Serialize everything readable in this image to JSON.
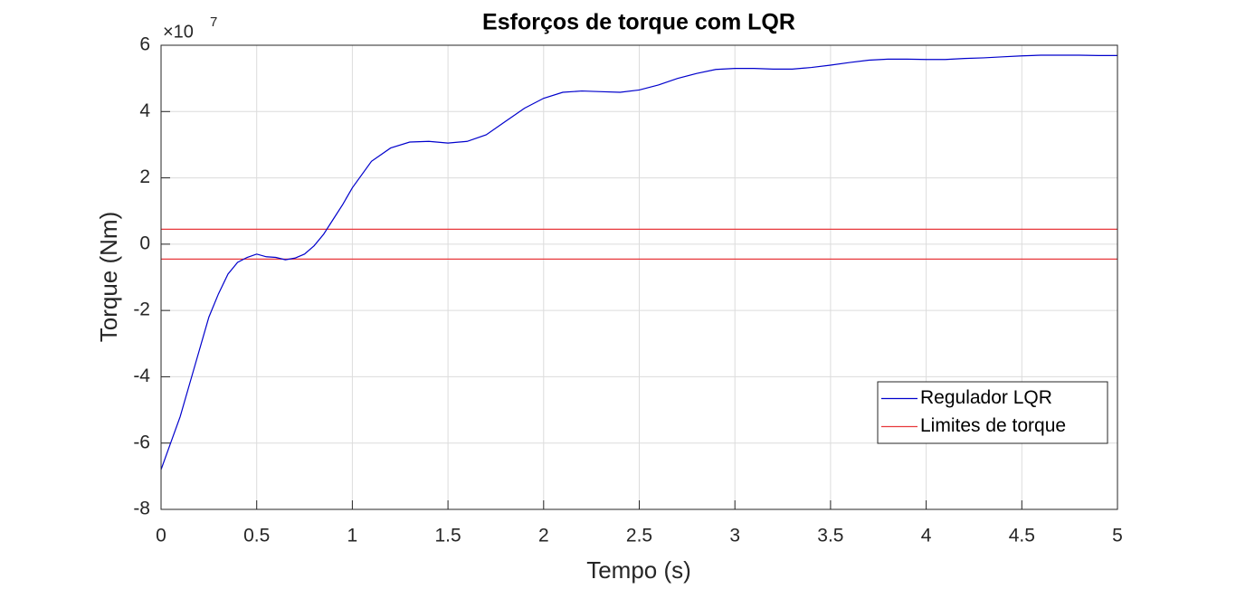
{
  "chart_data": {
    "type": "line",
    "title": "Esforços de torque com LQR",
    "x_label": "Tempo (s)",
    "y_label": "Torque (Nm)",
    "y_exponent": {
      "base": "×10",
      "power": "7"
    },
    "x": [
      0,
      0.05,
      0.1,
      0.15,
      0.2,
      0.25,
      0.3,
      0.35,
      0.4,
      0.45,
      0.5,
      0.55,
      0.6,
      0.65,
      0.7,
      0.75,
      0.8,
      0.85,
      0.9,
      0.95,
      1.0,
      1.1,
      1.2,
      1.3,
      1.4,
      1.5,
      1.6,
      1.7,
      1.8,
      1.9,
      2.0,
      2.1,
      2.2,
      2.3,
      2.4,
      2.5,
      2.6,
      2.7,
      2.8,
      2.9,
      3.0,
      3.1,
      3.2,
      3.3,
      3.4,
      3.5,
      3.6,
      3.7,
      3.8,
      3.9,
      4.0,
      4.1,
      4.2,
      4.3,
      4.4,
      4.5,
      4.6,
      4.7,
      4.8,
      4.9,
      5.0
    ],
    "series": [
      {
        "name": "Regulador LQR",
        "color": "#0000cc",
        "values": [
          -6.8,
          -6.0,
          -5.2,
          -4.2,
          -3.2,
          -2.2,
          -1.5,
          -0.9,
          -0.55,
          -0.4,
          -0.3,
          -0.38,
          -0.4,
          -0.47,
          -0.42,
          -0.3,
          -0.05,
          0.3,
          0.75,
          1.2,
          1.7,
          2.5,
          2.9,
          3.08,
          3.1,
          3.05,
          3.1,
          3.3,
          3.7,
          4.1,
          4.4,
          4.58,
          4.62,
          4.6,
          4.58,
          4.65,
          4.8,
          5.0,
          5.15,
          5.27,
          5.3,
          5.3,
          5.28,
          5.28,
          5.33,
          5.4,
          5.48,
          5.55,
          5.58,
          5.58,
          5.57,
          5.57,
          5.6,
          5.62,
          5.65,
          5.68,
          5.7,
          5.7,
          5.7,
          5.69,
          5.69
        ]
      }
    ],
    "reference_lines": {
      "name": "Limites de torque",
      "color": "#e8383b",
      "values": [
        0.45,
        -0.45
      ]
    },
    "xlim": [
      0,
      5
    ],
    "ylim": [
      -8,
      6
    ],
    "xticks": [
      0,
      0.5,
      1,
      1.5,
      2,
      2.5,
      3,
      3.5,
      4,
      4.5,
      5
    ],
    "yticks": [
      -8,
      -6,
      -4,
      -2,
      0,
      2,
      4,
      6
    ],
    "grid": true,
    "legend": "lower right"
  }
}
